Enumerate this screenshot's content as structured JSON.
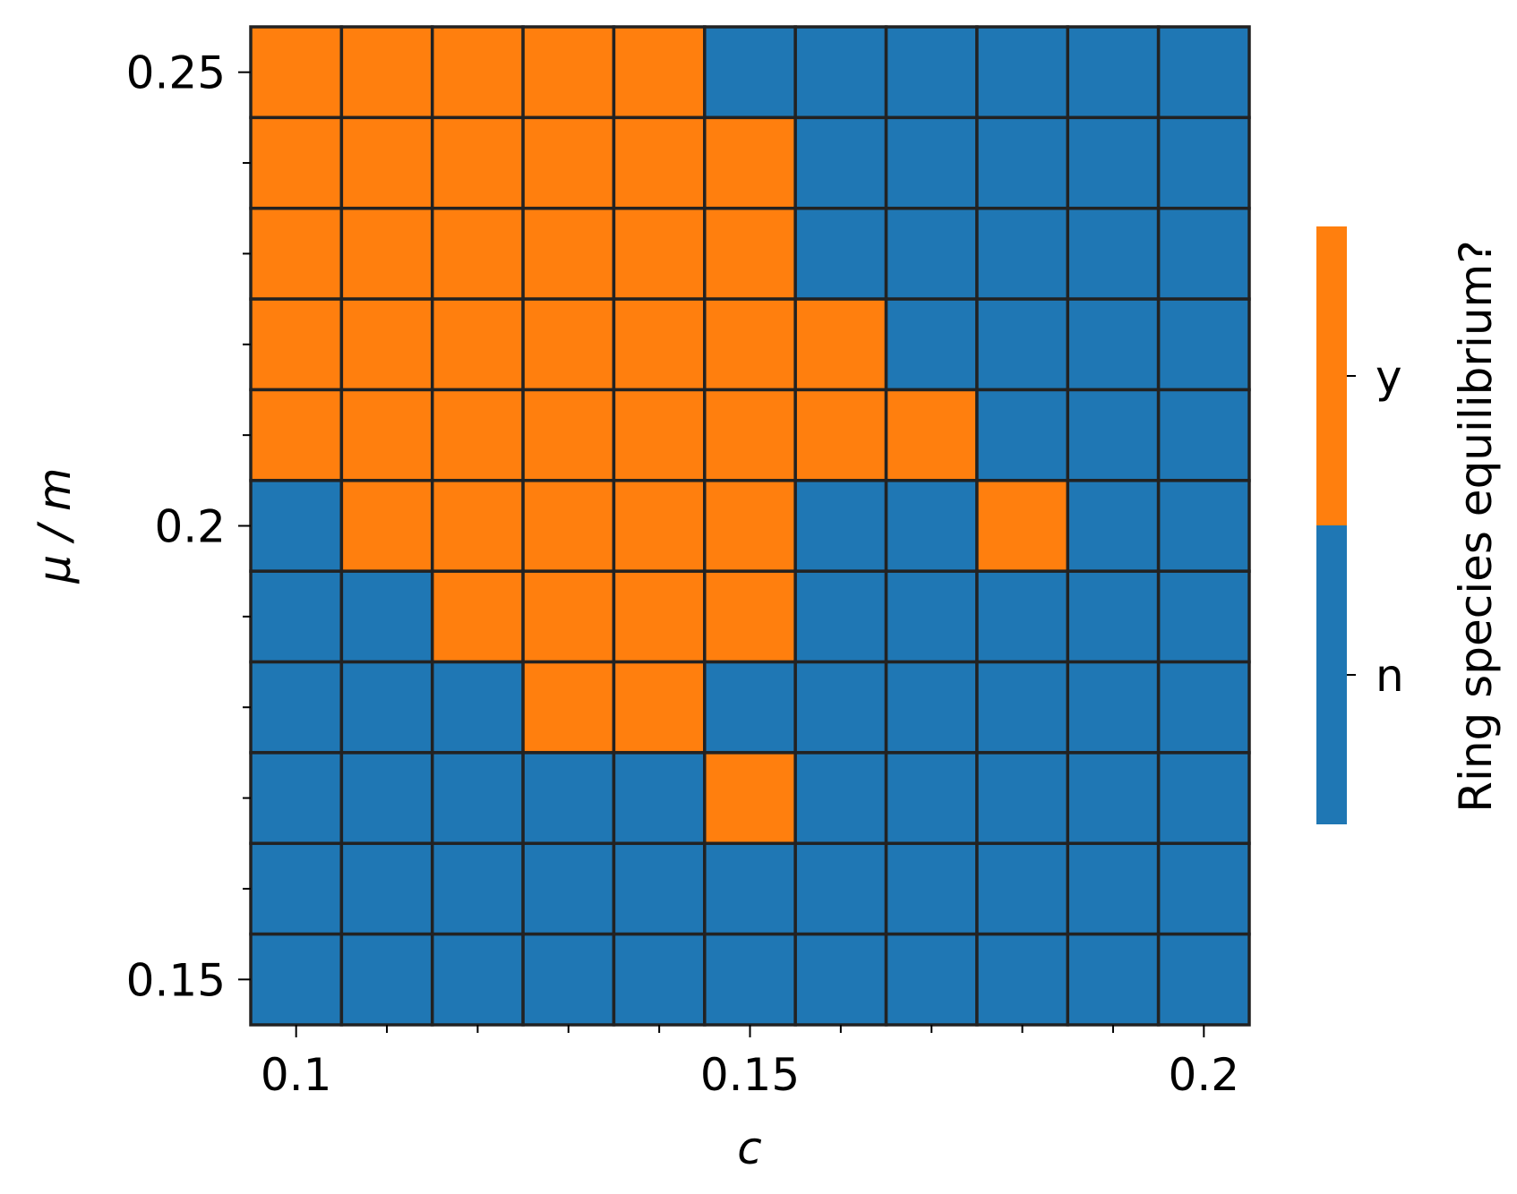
{
  "chart_data": {
    "type": "heatmap",
    "title": "",
    "xlabel": "c",
    "ylabel": "μ / m",
    "x": [
      0.1,
      0.11,
      0.12,
      0.13,
      0.14,
      0.15,
      0.16,
      0.17,
      0.18,
      0.19,
      0.2
    ],
    "y": [
      0.25,
      0.24,
      0.23,
      0.22,
      0.21,
      0.2,
      0.19,
      0.18,
      0.17,
      0.16,
      0.15
    ],
    "xlim": [
      0.095,
      0.205
    ],
    "ylim": [
      0.145,
      0.255
    ],
    "x_ticks": [
      {
        "value": 0.1,
        "label": "0.1"
      },
      {
        "value": 0.15,
        "label": "0.15"
      },
      {
        "value": 0.2,
        "label": "0.2"
      }
    ],
    "y_ticks": [
      {
        "value": 0.25,
        "label": "0.25"
      },
      {
        "value": 0.2,
        "label": "0.2"
      },
      {
        "value": 0.15,
        "label": "0.15"
      }
    ],
    "values": [
      [
        "y",
        "y",
        "y",
        "y",
        "y",
        "n",
        "n",
        "n",
        "n",
        "n",
        "n"
      ],
      [
        "y",
        "y",
        "y",
        "y",
        "y",
        "y",
        "n",
        "n",
        "n",
        "n",
        "n"
      ],
      [
        "y",
        "y",
        "y",
        "y",
        "y",
        "y",
        "n",
        "n",
        "n",
        "n",
        "n"
      ],
      [
        "y",
        "y",
        "y",
        "y",
        "y",
        "y",
        "y",
        "n",
        "n",
        "n",
        "n"
      ],
      [
        "y",
        "y",
        "y",
        "y",
        "y",
        "y",
        "y",
        "y",
        "n",
        "n",
        "n"
      ],
      [
        "n",
        "y",
        "y",
        "y",
        "y",
        "y",
        "n",
        "n",
        "y",
        "n",
        "n"
      ],
      [
        "n",
        "n",
        "y",
        "y",
        "y",
        "y",
        "n",
        "n",
        "n",
        "n",
        "n"
      ],
      [
        "n",
        "n",
        "n",
        "y",
        "y",
        "n",
        "n",
        "n",
        "n",
        "n",
        "n"
      ],
      [
        "n",
        "n",
        "n",
        "n",
        "n",
        "y",
        "n",
        "n",
        "n",
        "n",
        "n"
      ],
      [
        "n",
        "n",
        "n",
        "n",
        "n",
        "n",
        "n",
        "n",
        "n",
        "n",
        "n"
      ],
      [
        "n",
        "n",
        "n",
        "n",
        "n",
        "n",
        "n",
        "n",
        "n",
        "n",
        "n"
      ]
    ],
    "categories": [
      "n",
      "y"
    ],
    "colors": {
      "y": "#ff7f0e",
      "n": "#1f77b4",
      "grid": "#222222"
    },
    "colorbar": {
      "label": "Ring species equilibrium?",
      "ticks": [
        "y",
        "n"
      ]
    },
    "grid": false,
    "legend": "right"
  }
}
